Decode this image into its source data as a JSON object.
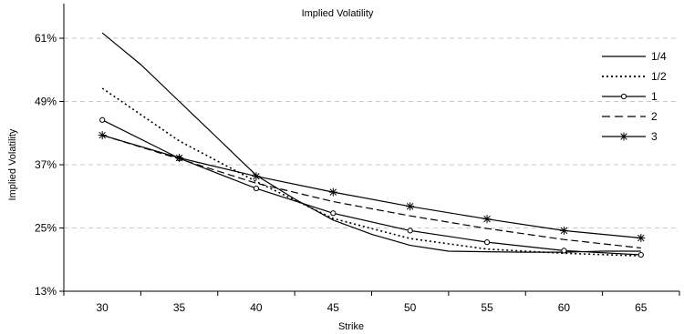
{
  "chart_data": {
    "type": "line",
    "title": "Implied Volatility",
    "xlabel": "Strike",
    "ylabel": "Implied Volatility",
    "x": [
      30,
      35,
      40,
      45,
      50,
      55,
      60,
      65
    ],
    "xlim": [
      27.5,
      67.5
    ],
    "ylim": [
      13,
      61
    ],
    "yticks": [
      13,
      25,
      37,
      49,
      61
    ],
    "ytick_labels": [
      "13%",
      "25%",
      "37%",
      "49%",
      "61%"
    ],
    "xtick_labels": [
      "30",
      "35",
      "40",
      "45",
      "50",
      "55",
      "60",
      "65"
    ],
    "grid": "horizontal-dashed",
    "legend": "right",
    "series": [
      {
        "name": "1/4",
        "style": "solid",
        "marker": "none",
        "x": [
          30,
          32.5,
          35,
          37.5,
          40,
          42.5,
          45,
          47.5,
          50,
          52.5,
          55,
          57.5,
          60,
          62.5,
          65
        ],
        "values": [
          62,
          56,
          49,
          42,
          35,
          30.5,
          26.5,
          23.8,
          21.7,
          20.6,
          20.5,
          20.4,
          20.4,
          20.6,
          20.6
        ]
      },
      {
        "name": "1/2",
        "style": "dotted",
        "marker": "none",
        "x": [
          30,
          35,
          40,
          45,
          50,
          55,
          60,
          65
        ],
        "values": [
          51.5,
          41.5,
          33.8,
          26.8,
          23,
          21,
          20.2,
          19.7
        ]
      },
      {
        "name": "1",
        "style": "solid",
        "marker": "circle",
        "x": [
          30,
          35,
          40,
          45,
          50,
          55,
          60,
          65
        ],
        "values": [
          45.5,
          38.2,
          32.5,
          27.8,
          24.5,
          22.3,
          20.7,
          19.9
        ]
      },
      {
        "name": "2",
        "style": "dashed",
        "marker": "none",
        "x": [
          30,
          35,
          40,
          45,
          50,
          55,
          60,
          65
        ],
        "values": [
          42.6,
          38.1,
          33.5,
          30,
          27.3,
          24.9,
          22.8,
          21.2
        ]
      },
      {
        "name": "3",
        "style": "solid",
        "marker": "asterisk",
        "x": [
          30,
          35,
          40,
          45,
          50,
          55,
          60,
          65
        ],
        "values": [
          42.6,
          38.3,
          34.8,
          31.8,
          29.1,
          26.7,
          24.5,
          23.1
        ]
      }
    ]
  }
}
